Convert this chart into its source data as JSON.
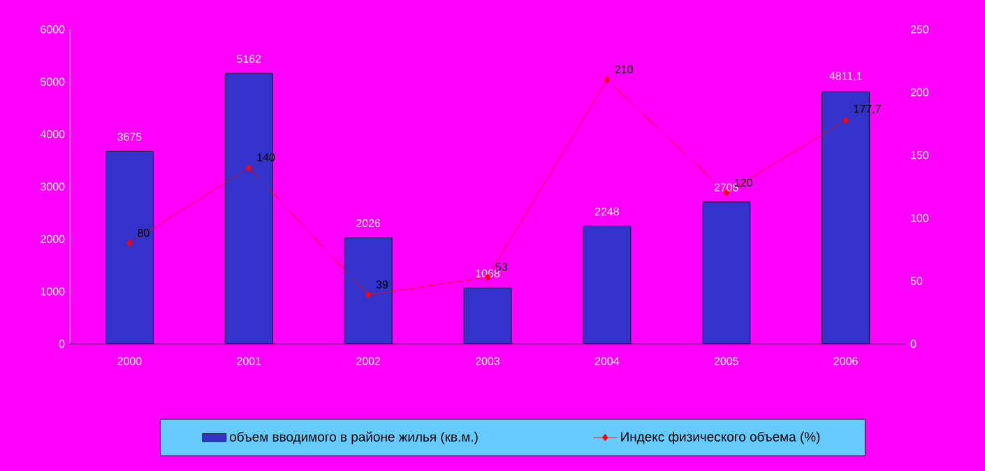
{
  "chart_data": {
    "type": "bar",
    "categories": [
      "2000",
      "2001",
      "2002",
      "2003",
      "2004",
      "2005",
      "2006"
    ],
    "series": [
      {
        "name": "объем вводимого в районе жилья (кв.м.)",
        "color": "#3333cc",
        "values": [
          3675,
          5162,
          2026,
          1068,
          2248,
          2708,
          4811.1
        ],
        "value_labels": [
          "3675",
          "5162",
          "2026",
          "1068",
          "2248",
          "2708",
          "4811,1"
        ]
      },
      {
        "name": "Индекс физического объема (%)",
        "type": "line",
        "axis": "y2",
        "color": "#ff0000",
        "values": [
          80,
          140,
          39,
          53,
          210,
          120,
          177.7
        ],
        "value_labels": [
          "80",
          "140",
          "39",
          "53",
          "210",
          "120",
          "177,7"
        ]
      }
    ],
    "ylim": [
      0,
      6000
    ],
    "yticks": [
      0,
      1000,
      2000,
      3000,
      4000,
      5000,
      6000
    ],
    "y2lim": [
      0,
      250
    ],
    "y2ticks": [
      0,
      50,
      100,
      150,
      200,
      250
    ],
    "legend": "bottom",
    "grid": false,
    "marker": "diamond",
    "line_style": "solid"
  }
}
